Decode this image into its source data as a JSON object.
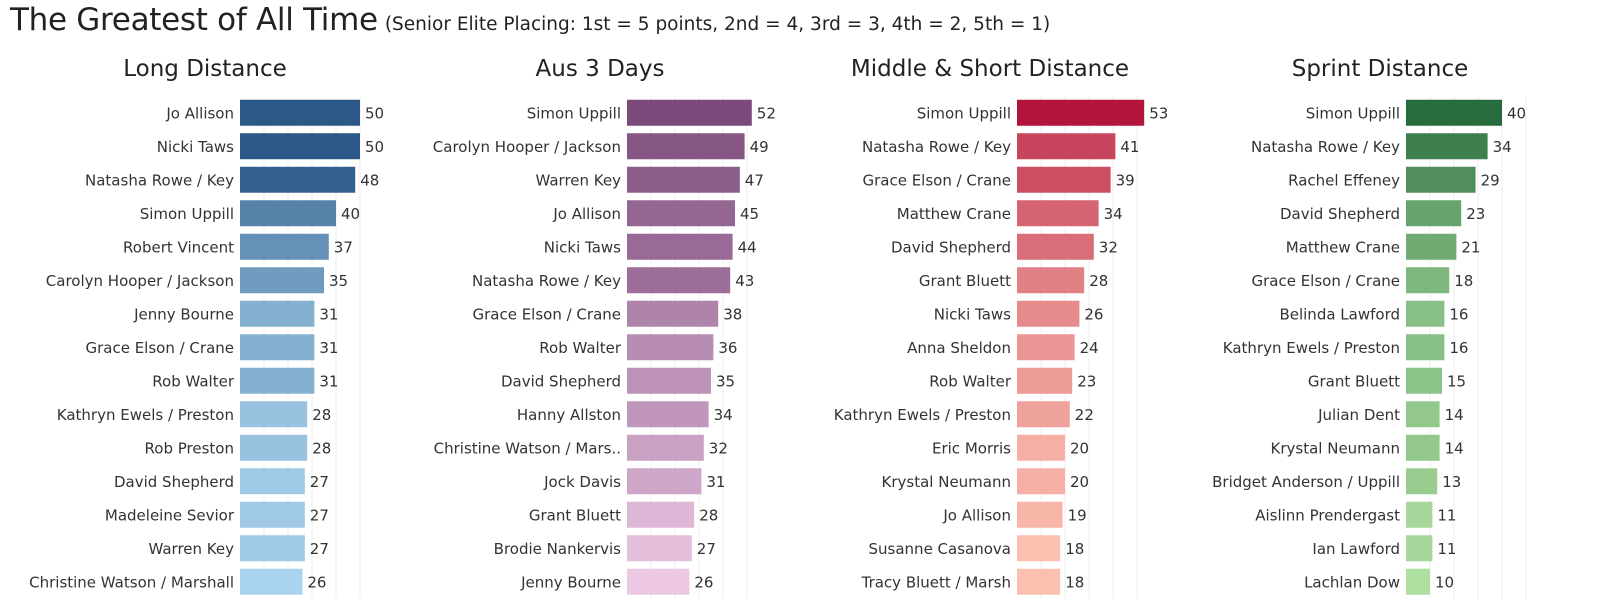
{
  "header": {
    "title": "The Greatest of All Time",
    "subtitle": "(Senior Elite Placing: 1st = 5 points, 2nd = 4, 3rd = 3, 4th = 2, 5th = 1)"
  },
  "chart_data": [
    {
      "type": "bar",
      "orientation": "horizontal",
      "title": "Long Distance",
      "grid": true,
      "color_scale": [
        "#a9d3ee",
        "#2b5886"
      ],
      "categories": [
        "Jo Allison",
        "Nicki Taws",
        "Natasha Rowe / Key",
        "Simon Uppill",
        "Robert Vincent",
        "Carolyn Hooper / Jackson",
        "Jenny Bourne",
        "Grace Elson / Crane",
        "Rob Walter",
        "Kathryn Ewels / Preston",
        "Rob Preston",
        "David Shepherd",
        "Madeleine Sevior",
        "Warren Key",
        "Christine Watson / Marshall"
      ],
      "values": [
        50,
        50,
        48,
        40,
        37,
        35,
        31,
        31,
        31,
        28,
        28,
        27,
        27,
        27,
        26
      ]
    },
    {
      "type": "bar",
      "orientation": "horizontal",
      "title": "Aus 3 Days",
      "grid": true,
      "color_scale": [
        "#ecc8e4",
        "#7b4a7a"
      ],
      "categories": [
        "Simon Uppill",
        "Carolyn Hooper / Jackson",
        "Warren Key",
        "Jo Allison",
        "Nicki Taws",
        "Natasha Rowe / Key",
        "Grace Elson / Crane",
        "Rob Walter",
        "David Shepherd",
        "Hanny Allston",
        "Christine Watson / Mars..",
        "Jock Davis",
        "Grant Bluett",
        "Brodie Nankervis",
        "Jenny Bourne"
      ],
      "values": [
        52,
        49,
        47,
        45,
        44,
        43,
        38,
        36,
        35,
        34,
        32,
        31,
        28,
        27,
        26
      ]
    },
    {
      "type": "bar",
      "orientation": "horizontal",
      "title": "Middle & Short Distance",
      "grid": true,
      "color_scale": [
        "#fcc0b0",
        "#b3143c"
      ],
      "categories": [
        "Simon Uppill",
        "Natasha Rowe / Key",
        "Grace Elson / Crane",
        "Matthew Crane",
        "David Shepherd",
        "Grant Bluett",
        "Nicki Taws",
        "Anna Sheldon",
        "Rob Walter",
        "Kathryn Ewels / Preston",
        "Eric Morris",
        "Krystal Neumann",
        "Jo Allison",
        "Susanne Casanova",
        "Tracy Bluett / Marsh"
      ],
      "values": [
        53,
        41,
        39,
        34,
        32,
        28,
        26,
        24,
        23,
        22,
        20,
        20,
        19,
        18,
        18
      ]
    },
    {
      "type": "bar",
      "orientation": "horizontal",
      "title": "Sprint Distance",
      "grid": true,
      "color_scale": [
        "#addf9f",
        "#276c3d"
      ],
      "categories": [
        "Simon Uppill",
        "Natasha Rowe / Key",
        "Rachel Effeney",
        "David Shepherd",
        "Matthew Crane",
        "Grace Elson / Crane",
        "Belinda Lawford",
        "Kathryn Ewels / Preston",
        "Grant Bluett",
        "Julian Dent",
        "Krystal Neumann",
        "Bridget Anderson / Uppill",
        "Aislinn Prendergast",
        "Ian Lawford",
        "Lachlan Dow"
      ],
      "values": [
        40,
        34,
        29,
        23,
        21,
        18,
        16,
        16,
        15,
        14,
        14,
        13,
        11,
        11,
        10
      ]
    }
  ]
}
